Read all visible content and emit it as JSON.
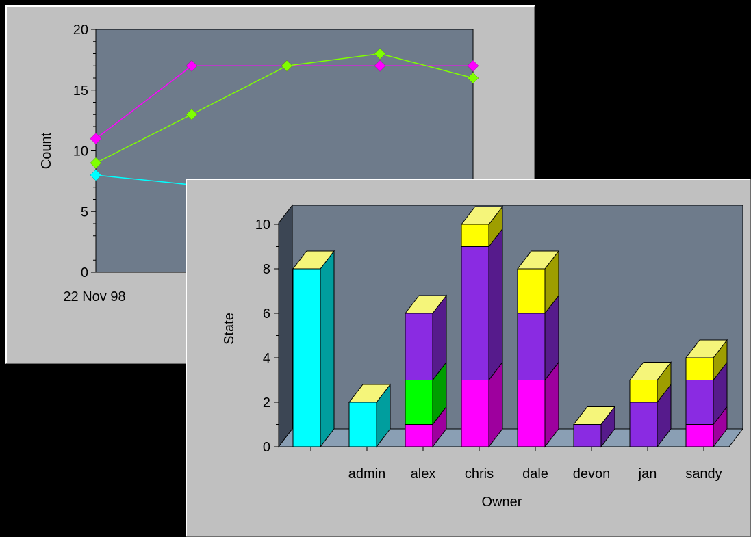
{
  "charts": {
    "line": {
      "type": "line",
      "ylabel": "Count",
      "ylim": [
        0,
        20
      ],
      "yticks": [
        0,
        5,
        10,
        15,
        20
      ],
      "x_tick_labels": [
        "22 Nov 98"
      ],
      "plot_bg": "#6e7b8b",
      "series": [
        {
          "color": "#ff00ff",
          "points": [
            [
              0,
              11
            ],
            [
              1,
              17
            ],
            [
              2,
              17
            ],
            [
              3,
              17
            ],
            [
              4,
              17
            ]
          ]
        },
        {
          "color": "#80ff00",
          "points": [
            [
              0,
              9
            ],
            [
              1,
              13
            ],
            [
              2,
              17
            ],
            [
              3,
              18
            ],
            [
              4,
              16
            ]
          ]
        },
        {
          "color": "#00ffff",
          "points": [
            [
              0,
              8
            ],
            [
              1,
              7.2
            ]
          ]
        }
      ]
    },
    "bar": {
      "type": "bar",
      "stacked": true,
      "three_d": true,
      "xlabel": "Owner",
      "ylabel": "State",
      "ylim": [
        0,
        10
      ],
      "yticks": [
        0,
        2,
        4,
        6,
        8,
        10
      ],
      "plot_bg": "#6e7b8b",
      "categories": [
        "",
        "admin",
        "alex",
        "chris",
        "dale",
        "devon",
        "jan",
        "sandy"
      ],
      "series": [
        {
          "color": "#00ffff",
          "values": [
            8,
            2,
            0,
            0,
            0,
            0,
            0,
            0
          ]
        },
        {
          "color": "#ff00ff",
          "values": [
            0,
            0,
            1,
            3,
            3,
            0,
            0,
            1
          ]
        },
        {
          "color": "#00ff00",
          "values": [
            0,
            0,
            2,
            0,
            0,
            0,
            0,
            0
          ]
        },
        {
          "color": "#8a2be2",
          "values": [
            0,
            0,
            3,
            6,
            3,
            1,
            2,
            2
          ]
        },
        {
          "color": "#ffff00",
          "values": [
            0,
            0,
            0,
            1,
            2,
            0,
            1,
            1
          ]
        }
      ]
    }
  }
}
